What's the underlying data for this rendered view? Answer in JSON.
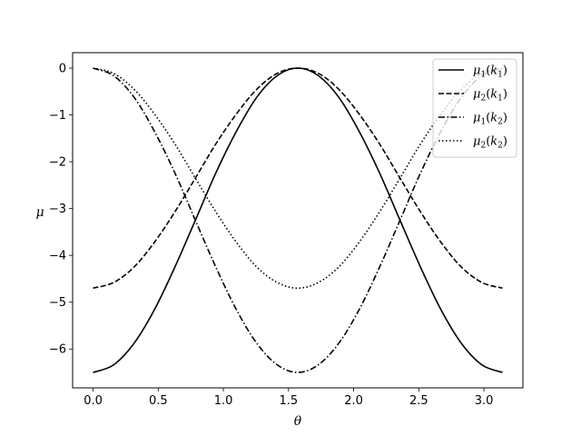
{
  "chart_data": {
    "type": "line",
    "xlabel": "θ",
    "ylabel": "μ",
    "xlim": [
      -0.157,
      3.299
    ],
    "ylim": [
      -6.83,
      0.33
    ],
    "xticks": [
      0.0,
      0.5,
      1.0,
      1.5,
      2.0,
      2.5,
      3.0
    ],
    "xtick_labels": [
      "0.0",
      "0.5",
      "1.0",
      "1.5",
      "2.0",
      "2.5",
      "3.0"
    ],
    "yticks": [
      0,
      -1,
      -2,
      -3,
      -4,
      -5,
      -6
    ],
    "ytick_labels": [
      "0",
      "−1",
      "−2",
      "−3",
      "−4",
      "−5",
      "−6"
    ],
    "grid": false,
    "legend_position": "top-right",
    "x": [
      0.0,
      0.157,
      0.314,
      0.471,
      0.628,
      0.785,
      0.942,
      1.1,
      1.257,
      1.414,
      1.571,
      1.728,
      1.885,
      2.042,
      2.199,
      2.356,
      2.513,
      2.67,
      2.827,
      2.985,
      3.142
    ],
    "series": [
      {
        "name": "μ1(k1)",
        "style": "solid",
        "values": [
          -6.5,
          -6.34,
          -5.88,
          -5.16,
          -4.25,
          -3.25,
          -2.24,
          -1.35,
          -0.62,
          -0.16,
          0.0,
          -0.16,
          -0.62,
          -1.35,
          -2.24,
          -3.25,
          -4.25,
          -5.16,
          -5.88,
          -6.34,
          -6.5
        ]
      },
      {
        "name": "μ2(k1)",
        "style": "dashed",
        "values": [
          -4.7,
          -4.58,
          -4.25,
          -3.72,
          -3.07,
          -2.35,
          -1.62,
          -0.98,
          -0.45,
          -0.11,
          0.0,
          -0.11,
          -0.45,
          -0.98,
          -1.62,
          -2.35,
          -3.07,
          -3.72,
          -4.25,
          -4.58,
          -4.7
        ]
      },
      {
        "name": "μ1(k2)",
        "style": "dashdot",
        "values": [
          0.0,
          -0.16,
          -0.62,
          -1.35,
          -2.24,
          -3.25,
          -4.25,
          -5.16,
          -5.88,
          -6.34,
          -6.5,
          -6.34,
          -5.88,
          -5.16,
          -4.25,
          -3.25,
          -2.24,
          -1.35,
          -0.62,
          -0.16,
          0.0
        ]
      },
      {
        "name": "μ2(k2)",
        "style": "dotted",
        "values": [
          0.0,
          -0.11,
          -0.45,
          -0.98,
          -1.62,
          -2.35,
          -3.07,
          -3.72,
          -4.25,
          -4.58,
          -4.7,
          -4.58,
          -4.25,
          -3.72,
          -3.07,
          -2.35,
          -1.62,
          -0.98,
          -0.45,
          -0.11,
          0.0
        ]
      }
    ]
  },
  "legend": {
    "entries": [
      {
        "base": "μ",
        "sub": "1",
        "arg": "k",
        "argsub": "1"
      },
      {
        "base": "μ",
        "sub": "2",
        "arg": "k",
        "argsub": "1"
      },
      {
        "base": "μ",
        "sub": "1",
        "arg": "k",
        "argsub": "2"
      },
      {
        "base": "μ",
        "sub": "2",
        "arg": "k",
        "argsub": "2"
      }
    ]
  },
  "colors": {
    "line": "#000000",
    "axes": "#000000",
    "background": "#ffffff",
    "legend_border": "#cccccc"
  }
}
